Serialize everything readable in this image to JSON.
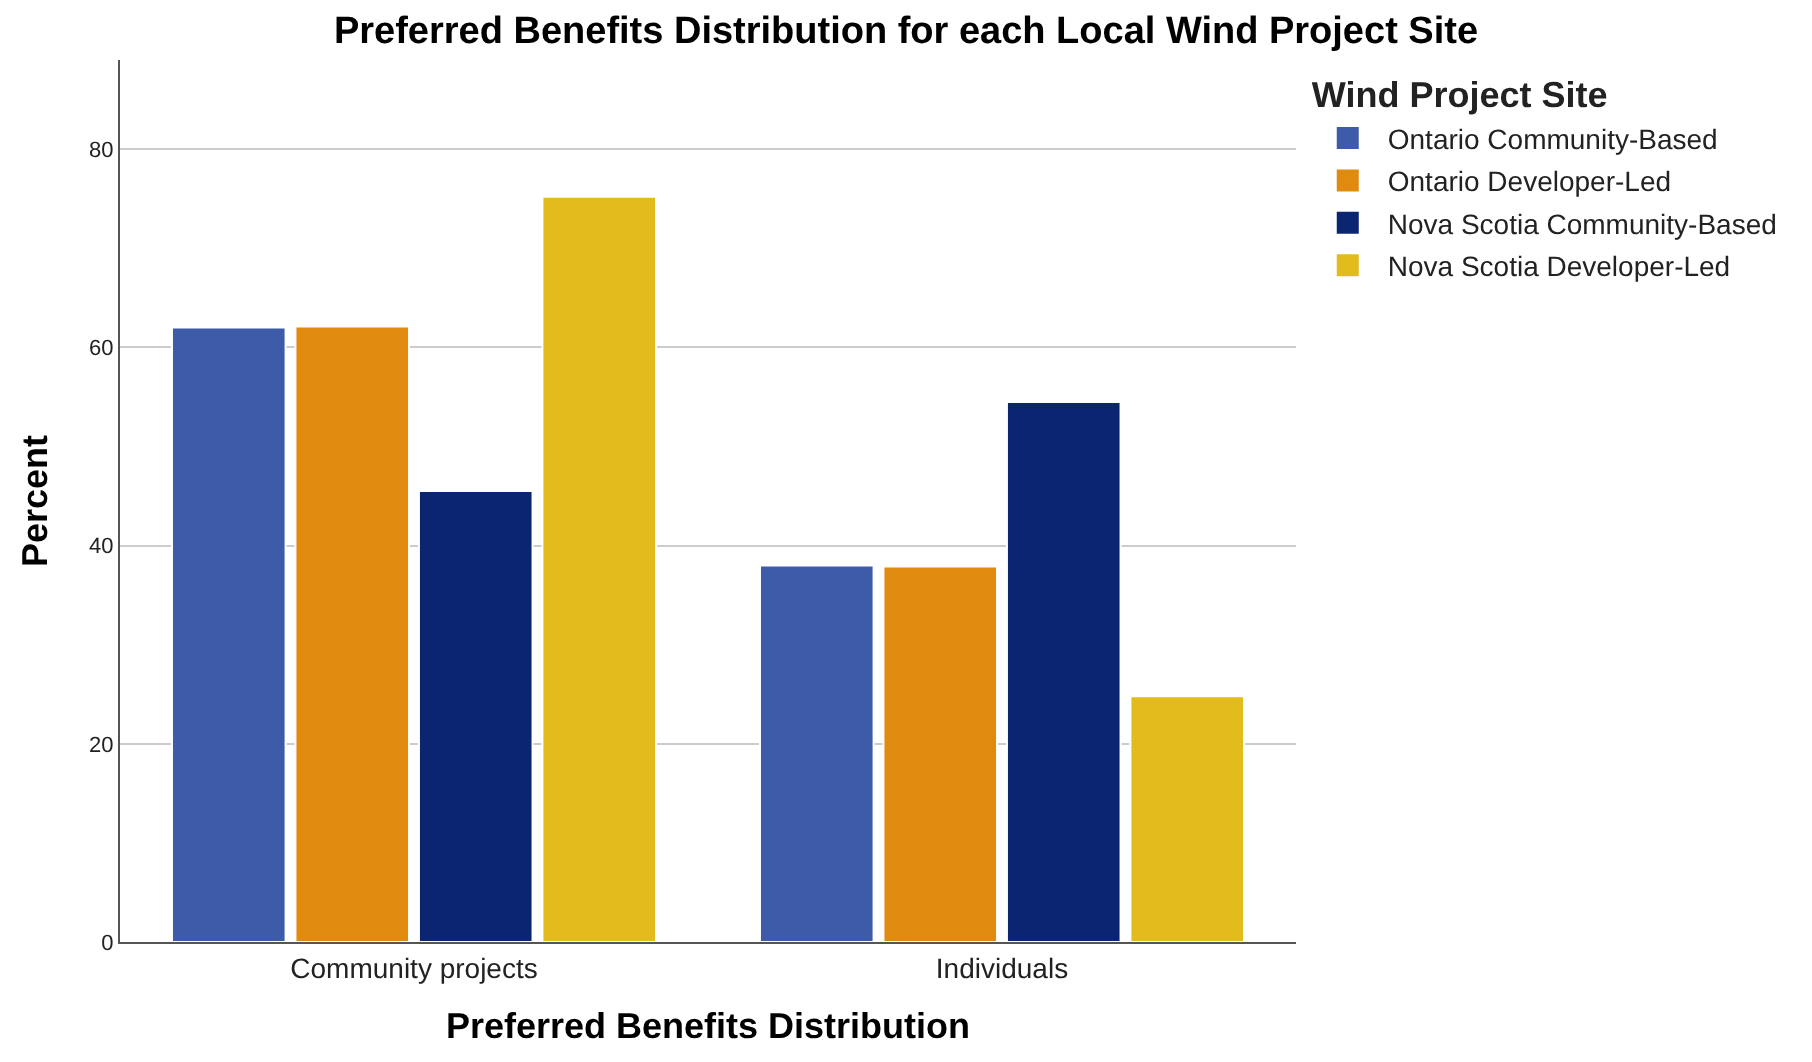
{
  "chart_data": {
    "type": "bar",
    "title": "Preferred Benefits Distribution for each Local Wind Project Site",
    "xlabel": "Preferred Benefits Distribution",
    "ylabel": "Percent",
    "legend_title": "Wind Project Site",
    "categories": [
      "Community projects",
      "Individuals"
    ],
    "series": [
      {
        "name": "Ontario Community-Based",
        "color": "#3e5ba9",
        "values": [
          62.0,
          38.0
        ]
      },
      {
        "name": "Ontario Developer-Led",
        "color": "#e08a10",
        "values": [
          62.1,
          37.9
        ]
      },
      {
        "name": "Nova Scotia Community-Based",
        "color": "#0c2570",
        "values": [
          45.5,
          54.5
        ]
      },
      {
        "name": "Nova Scotia Developer-Led",
        "color": "#e1bc1c",
        "values": [
          75.2,
          24.8
        ]
      }
    ],
    "ylim": [
      0,
      89
    ],
    "yticks": [
      0,
      20,
      40,
      60,
      80
    ],
    "grid": "y",
    "legend": "top right"
  }
}
